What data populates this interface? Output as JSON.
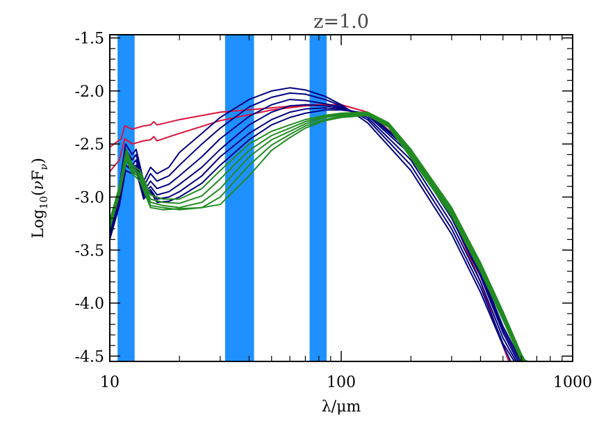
{
  "chart_data": {
    "type": "line",
    "title": "z=1.0",
    "xlabel": "λ/μm",
    "ylabel": "Log10(νFν)",
    "ylabel_parts": {
      "base": "Log",
      "sub": "10",
      "open": "(",
      "nu": "ν",
      "F": "F",
      "subnu": "ν",
      "close": ")"
    },
    "x_scale": "log",
    "xlim": [
      10,
      1000
    ],
    "ylim": [
      -4.55,
      -1.47
    ],
    "x_ticks": [
      10,
      100,
      1000
    ],
    "x_tick_labels": [
      "10",
      "100",
      "1000"
    ],
    "y_ticks": [
      -1.5,
      -2.0,
      -2.5,
      -3.0,
      -3.5,
      -4.0,
      -4.5
    ],
    "y_tick_labels": [
      "-1.5",
      "-2.0",
      "-2.5",
      "-3.0",
      "-3.5",
      "-4.0",
      "-4.5"
    ],
    "grid": false,
    "shaded_bands": [
      {
        "x0": 10.8,
        "x1": 12.8,
        "color": "#1e90ff"
      },
      {
        "x0": 31.5,
        "x1": 42.0,
        "color": "#1e90ff"
      },
      {
        "x0": 73.0,
        "x1": 86.5,
        "color": "#1e90ff"
      }
    ],
    "series": [
      {
        "color": "#dc143c",
        "points": [
          [
            10,
            -2.53
          ],
          [
            11.2,
            -2.45
          ],
          [
            11.6,
            -2.33
          ],
          [
            12.5,
            -2.36
          ],
          [
            14,
            -2.33
          ],
          [
            15,
            -2.32
          ],
          [
            15.5,
            -2.29
          ],
          [
            16,
            -2.32
          ],
          [
            20,
            -2.27
          ],
          [
            30,
            -2.2
          ],
          [
            50,
            -2.16
          ],
          [
            70,
            -2.13
          ],
          [
            100,
            -2.13
          ],
          [
            130,
            -2.2
          ],
          [
            200,
            -2.55
          ],
          [
            300,
            -3.18
          ],
          [
            400,
            -3.8
          ],
          [
            480,
            -4.3
          ],
          [
            530,
            -4.55
          ]
        ]
      },
      {
        "color": "#dc143c",
        "points": [
          [
            10,
            -2.76
          ],
          [
            11,
            -2.65
          ],
          [
            11.6,
            -2.45
          ],
          [
            12.5,
            -2.5
          ],
          [
            14,
            -2.47
          ],
          [
            15,
            -2.46
          ],
          [
            15.5,
            -2.43
          ],
          [
            16,
            -2.47
          ],
          [
            20,
            -2.4
          ],
          [
            30,
            -2.28
          ],
          [
            50,
            -2.18
          ],
          [
            70,
            -2.14
          ],
          [
            100,
            -2.13
          ],
          [
            130,
            -2.2
          ],
          [
            200,
            -2.55
          ],
          [
            300,
            -3.18
          ],
          [
            400,
            -3.8
          ],
          [
            480,
            -4.3
          ],
          [
            530,
            -4.55
          ]
        ]
      },
      {
        "color": "#000080",
        "points": [
          [
            10,
            -3.3
          ],
          [
            11,
            -2.9
          ],
          [
            11.7,
            -2.5
          ],
          [
            12.5,
            -2.6
          ],
          [
            13,
            -2.55
          ],
          [
            14,
            -2.85
          ],
          [
            15,
            -2.72
          ],
          [
            16,
            -2.78
          ],
          [
            18,
            -2.72
          ],
          [
            20,
            -2.58
          ],
          [
            25,
            -2.4
          ],
          [
            30,
            -2.25
          ],
          [
            40,
            -2.08
          ],
          [
            50,
            -2.0
          ],
          [
            60,
            -1.97
          ],
          [
            70,
            -1.99
          ],
          [
            85,
            -2.05
          ],
          [
            100,
            -2.13
          ],
          [
            130,
            -2.3
          ],
          [
            200,
            -2.75
          ],
          [
            300,
            -3.35
          ],
          [
            400,
            -3.9
          ],
          [
            500,
            -4.4
          ],
          [
            540,
            -4.55
          ]
        ]
      },
      {
        "color": "#000080",
        "points": [
          [
            10,
            -3.32
          ],
          [
            11,
            -2.95
          ],
          [
            11.7,
            -2.55
          ],
          [
            12.5,
            -2.65
          ],
          [
            13,
            -2.6
          ],
          [
            14,
            -2.9
          ],
          [
            15,
            -2.78
          ],
          [
            16,
            -2.85
          ],
          [
            18,
            -2.8
          ],
          [
            20,
            -2.7
          ],
          [
            25,
            -2.5
          ],
          [
            30,
            -2.35
          ],
          [
            40,
            -2.15
          ],
          [
            50,
            -2.06
          ],
          [
            60,
            -2.02
          ],
          [
            70,
            -2.03
          ],
          [
            85,
            -2.08
          ],
          [
            100,
            -2.14
          ],
          [
            130,
            -2.27
          ],
          [
            200,
            -2.7
          ],
          [
            300,
            -3.3
          ],
          [
            400,
            -3.85
          ],
          [
            500,
            -4.38
          ],
          [
            560,
            -4.55
          ]
        ]
      },
      {
        "color": "#000080",
        "points": [
          [
            10,
            -3.35
          ],
          [
            11,
            -3.0
          ],
          [
            11.7,
            -2.6
          ],
          [
            12.5,
            -2.7
          ],
          [
            13,
            -2.65
          ],
          [
            14,
            -2.95
          ],
          [
            15,
            -2.85
          ],
          [
            16,
            -2.92
          ],
          [
            18,
            -2.88
          ],
          [
            20,
            -2.8
          ],
          [
            25,
            -2.62
          ],
          [
            30,
            -2.45
          ],
          [
            40,
            -2.24
          ],
          [
            50,
            -2.13
          ],
          [
            60,
            -2.08
          ],
          [
            70,
            -2.09
          ],
          [
            85,
            -2.12
          ],
          [
            100,
            -2.15
          ],
          [
            130,
            -2.25
          ],
          [
            200,
            -2.65
          ],
          [
            300,
            -3.25
          ],
          [
            400,
            -3.8
          ],
          [
            500,
            -4.33
          ],
          [
            570,
            -4.55
          ]
        ]
      },
      {
        "color": "#000080",
        "points": [
          [
            10,
            -3.37
          ],
          [
            11,
            -3.02
          ],
          [
            11.7,
            -2.65
          ],
          [
            12.5,
            -2.72
          ],
          [
            13,
            -2.7
          ],
          [
            14,
            -2.98
          ],
          [
            15,
            -2.9
          ],
          [
            16,
            -2.98
          ],
          [
            18,
            -2.95
          ],
          [
            20,
            -2.88
          ],
          [
            25,
            -2.72
          ],
          [
            30,
            -2.55
          ],
          [
            40,
            -2.32
          ],
          [
            50,
            -2.2
          ],
          [
            60,
            -2.14
          ],
          [
            70,
            -2.13
          ],
          [
            85,
            -2.14
          ],
          [
            100,
            -2.16
          ],
          [
            130,
            -2.23
          ],
          [
            200,
            -2.6
          ],
          [
            300,
            -3.2
          ],
          [
            400,
            -3.75
          ],
          [
            500,
            -4.28
          ],
          [
            580,
            -4.55
          ]
        ]
      },
      {
        "color": "#000080",
        "points": [
          [
            10,
            -3.38
          ],
          [
            11,
            -3.05
          ],
          [
            11.7,
            -2.7
          ],
          [
            12.5,
            -2.75
          ],
          [
            13,
            -2.72
          ],
          [
            14,
            -3.0
          ],
          [
            15,
            -2.93
          ],
          [
            16,
            -3.02
          ],
          [
            18,
            -3.0
          ],
          [
            20,
            -2.95
          ],
          [
            25,
            -2.8
          ],
          [
            30,
            -2.62
          ],
          [
            40,
            -2.4
          ],
          [
            50,
            -2.27
          ],
          [
            60,
            -2.2
          ],
          [
            70,
            -2.17
          ],
          [
            85,
            -2.16
          ],
          [
            100,
            -2.17
          ],
          [
            130,
            -2.22
          ],
          [
            200,
            -2.57
          ],
          [
            300,
            -3.17
          ],
          [
            400,
            -3.72
          ],
          [
            500,
            -4.25
          ],
          [
            590,
            -4.55
          ]
        ]
      },
      {
        "color": "#000080",
        "points": [
          [
            10,
            -3.4
          ],
          [
            11,
            -3.08
          ],
          [
            11.7,
            -2.75
          ],
          [
            12.5,
            -2.78
          ],
          [
            13,
            -2.75
          ],
          [
            14,
            -3.02
          ],
          [
            15,
            -2.95
          ],
          [
            16,
            -3.05
          ],
          [
            18,
            -3.04
          ],
          [
            20,
            -3.0
          ],
          [
            25,
            -2.87
          ],
          [
            30,
            -2.7
          ],
          [
            40,
            -2.46
          ],
          [
            50,
            -2.32
          ],
          [
            60,
            -2.25
          ],
          [
            70,
            -2.21
          ],
          [
            85,
            -2.18
          ],
          [
            100,
            -2.18
          ],
          [
            130,
            -2.21
          ],
          [
            200,
            -2.55
          ],
          [
            300,
            -3.15
          ],
          [
            400,
            -3.7
          ],
          [
            500,
            -4.22
          ],
          [
            600,
            -4.55
          ]
        ]
      },
      {
        "color": "#228b22",
        "points": [
          [
            10,
            -3.22
          ],
          [
            11,
            -2.9
          ],
          [
            11.8,
            -2.55
          ],
          [
            12.5,
            -2.7
          ],
          [
            13.5,
            -2.75
          ],
          [
            15,
            -2.98
          ],
          [
            17,
            -3.02
          ],
          [
            20,
            -3.02
          ],
          [
            25,
            -2.92
          ],
          [
            30,
            -2.75
          ],
          [
            40,
            -2.5
          ],
          [
            50,
            -2.38
          ],
          [
            60,
            -2.32
          ],
          [
            70,
            -2.27
          ],
          [
            85,
            -2.23
          ],
          [
            100,
            -2.21
          ],
          [
            130,
            -2.2
          ],
          [
            160,
            -2.3
          ],
          [
            200,
            -2.55
          ],
          [
            300,
            -3.1
          ],
          [
            400,
            -3.62
          ],
          [
            500,
            -4.08
          ],
          [
            600,
            -4.48
          ],
          [
            625,
            -4.55
          ]
        ]
      },
      {
        "color": "#228b22",
        "points": [
          [
            10,
            -3.24
          ],
          [
            11,
            -2.92
          ],
          [
            11.8,
            -2.57
          ],
          [
            12.5,
            -2.72
          ],
          [
            13.5,
            -2.78
          ],
          [
            15,
            -3.02
          ],
          [
            17,
            -3.05
          ],
          [
            20,
            -3.06
          ],
          [
            25,
            -2.99
          ],
          [
            30,
            -2.83
          ],
          [
            40,
            -2.56
          ],
          [
            50,
            -2.42
          ],
          [
            60,
            -2.35
          ],
          [
            70,
            -2.29
          ],
          [
            85,
            -2.24
          ],
          [
            100,
            -2.22
          ],
          [
            130,
            -2.21
          ],
          [
            160,
            -2.31
          ],
          [
            200,
            -2.57
          ],
          [
            300,
            -3.12
          ],
          [
            400,
            -3.64
          ],
          [
            500,
            -4.1
          ],
          [
            600,
            -4.5
          ],
          [
            630,
            -4.55
          ]
        ]
      },
      {
        "color": "#228b22",
        "points": [
          [
            10,
            -3.26
          ],
          [
            11,
            -2.94
          ],
          [
            11.8,
            -2.6
          ],
          [
            12.5,
            -2.74
          ],
          [
            13.5,
            -2.8
          ],
          [
            15,
            -3.05
          ],
          [
            17,
            -3.08
          ],
          [
            20,
            -3.1
          ],
          [
            25,
            -3.05
          ],
          [
            30,
            -2.92
          ],
          [
            40,
            -2.62
          ],
          [
            50,
            -2.46
          ],
          [
            60,
            -2.38
          ],
          [
            70,
            -2.31
          ],
          [
            85,
            -2.25
          ],
          [
            100,
            -2.23
          ],
          [
            130,
            -2.21
          ],
          [
            160,
            -2.32
          ],
          [
            200,
            -2.59
          ],
          [
            300,
            -3.14
          ],
          [
            400,
            -3.66
          ],
          [
            500,
            -4.12
          ],
          [
            600,
            -4.52
          ],
          [
            635,
            -4.55
          ]
        ]
      },
      {
        "color": "#228b22",
        "points": [
          [
            10,
            -3.28
          ],
          [
            11,
            -2.96
          ],
          [
            11.8,
            -2.62
          ],
          [
            12.5,
            -2.76
          ],
          [
            13.5,
            -2.82
          ],
          [
            15,
            -3.08
          ],
          [
            17,
            -3.1
          ],
          [
            20,
            -3.12
          ],
          [
            25,
            -3.1
          ],
          [
            30,
            -3.0
          ],
          [
            40,
            -2.7
          ],
          [
            50,
            -2.51
          ],
          [
            60,
            -2.41
          ],
          [
            70,
            -2.33
          ],
          [
            85,
            -2.27
          ],
          [
            100,
            -2.24
          ],
          [
            130,
            -2.22
          ],
          [
            160,
            -2.33
          ],
          [
            200,
            -2.61
          ],
          [
            300,
            -3.16
          ],
          [
            400,
            -3.68
          ],
          [
            500,
            -4.14
          ],
          [
            600,
            -4.53
          ],
          [
            640,
            -4.55
          ]
        ]
      },
      {
        "color": "#228b22",
        "points": [
          [
            10,
            -3.3
          ],
          [
            11,
            -2.98
          ],
          [
            11.8,
            -2.65
          ],
          [
            12.5,
            -2.78
          ],
          [
            13.5,
            -2.85
          ],
          [
            15,
            -3.1
          ],
          [
            17,
            -3.12
          ],
          [
            20,
            -3.11
          ],
          [
            25,
            -3.1
          ],
          [
            30,
            -3.07
          ],
          [
            40,
            -2.8
          ],
          [
            50,
            -2.56
          ],
          [
            60,
            -2.44
          ],
          [
            70,
            -2.35
          ],
          [
            85,
            -2.28
          ],
          [
            100,
            -2.25
          ],
          [
            130,
            -2.23
          ],
          [
            160,
            -2.34
          ],
          [
            200,
            -2.63
          ],
          [
            300,
            -3.18
          ],
          [
            400,
            -3.7
          ],
          [
            500,
            -4.16
          ],
          [
            600,
            -4.54
          ],
          [
            645,
            -4.55
          ]
        ]
      }
    ]
  }
}
